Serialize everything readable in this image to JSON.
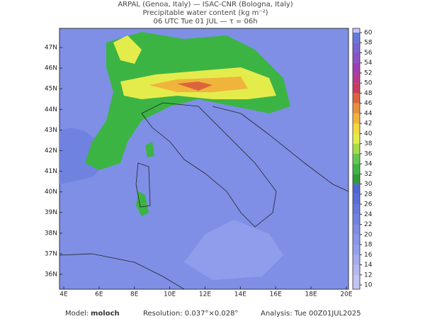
{
  "header": {
    "line1": "ARPAL (Genoa, Italy)  —  ISAC-CNR (Bologna, Italy)",
    "line2": "Precipitable water content (kg m⁻²)",
    "line3": "06 UTC Tue 01 JUL  —  τ = 06h"
  },
  "map": {
    "lon_labels": [
      "4E",
      "6E",
      "8E",
      "10E",
      "12E",
      "14E",
      "16E",
      "18E",
      "20E"
    ],
    "lat_labels": [
      "47N",
      "46N",
      "45N",
      "44N",
      "43N",
      "42N",
      "41N",
      "40N",
      "39N",
      "38N",
      "37N",
      "36N"
    ]
  },
  "colorbar": {
    "ticks": [
      10,
      12,
      14,
      16,
      18,
      20,
      22,
      24,
      26,
      28,
      30,
      32,
      34,
      36,
      38,
      40,
      42,
      44,
      46,
      48,
      50,
      52,
      54,
      56,
      58,
      60
    ],
    "colors": [
      "#c4c4f2",
      "#b4b8f0",
      "#a4acee",
      "#949fec",
      "#8a96ea",
      "#7e8ce6",
      "#7282e2",
      "#6678de",
      "#5a6ed8",
      "#4f66d2",
      "#2e9a3a",
      "#3cb444",
      "#64c850",
      "#a8dc44",
      "#e4ec4c",
      "#f4d83c",
      "#f0b43c",
      "#e8903c",
      "#dc643c",
      "#c83c5c",
      "#b43c8c",
      "#a03cb4",
      "#8c50c8",
      "#7864d2",
      "#6478dc"
    ]
  },
  "footer": {
    "model_label": "Model:",
    "model": "moloch",
    "resolution": "Resolution: 0.037°×0.028°",
    "analysis": "Analysis: Tue 00Z01JUL2025"
  }
}
